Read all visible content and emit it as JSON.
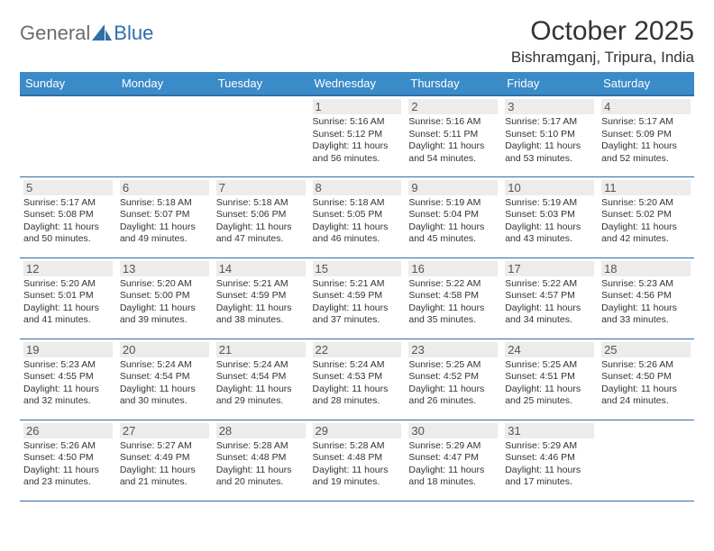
{
  "logo": {
    "general": "General",
    "blue": "Blue"
  },
  "title": "October 2025",
  "location": "Bishramganj, Tripura, India",
  "colors": {
    "header_bg": "#3b8bc8",
    "header_border": "#2f6fa8",
    "daynum_bg": "#ececec",
    "text": "#333333"
  },
  "weekdays": [
    "Sunday",
    "Monday",
    "Tuesday",
    "Wednesday",
    "Thursday",
    "Friday",
    "Saturday"
  ],
  "grid": [
    [
      {
        "empty": true
      },
      {
        "empty": true
      },
      {
        "empty": true
      },
      {
        "day": "1",
        "sunrise": "Sunrise: 5:16 AM",
        "sunset": "Sunset: 5:12 PM",
        "dl1": "Daylight: 11 hours",
        "dl2": "and 56 minutes."
      },
      {
        "day": "2",
        "sunrise": "Sunrise: 5:16 AM",
        "sunset": "Sunset: 5:11 PM",
        "dl1": "Daylight: 11 hours",
        "dl2": "and 54 minutes."
      },
      {
        "day": "3",
        "sunrise": "Sunrise: 5:17 AM",
        "sunset": "Sunset: 5:10 PM",
        "dl1": "Daylight: 11 hours",
        "dl2": "and 53 minutes."
      },
      {
        "day": "4",
        "sunrise": "Sunrise: 5:17 AM",
        "sunset": "Sunset: 5:09 PM",
        "dl1": "Daylight: 11 hours",
        "dl2": "and 52 minutes."
      }
    ],
    [
      {
        "day": "5",
        "sunrise": "Sunrise: 5:17 AM",
        "sunset": "Sunset: 5:08 PM",
        "dl1": "Daylight: 11 hours",
        "dl2": "and 50 minutes."
      },
      {
        "day": "6",
        "sunrise": "Sunrise: 5:18 AM",
        "sunset": "Sunset: 5:07 PM",
        "dl1": "Daylight: 11 hours",
        "dl2": "and 49 minutes."
      },
      {
        "day": "7",
        "sunrise": "Sunrise: 5:18 AM",
        "sunset": "Sunset: 5:06 PM",
        "dl1": "Daylight: 11 hours",
        "dl2": "and 47 minutes."
      },
      {
        "day": "8",
        "sunrise": "Sunrise: 5:18 AM",
        "sunset": "Sunset: 5:05 PM",
        "dl1": "Daylight: 11 hours",
        "dl2": "and 46 minutes."
      },
      {
        "day": "9",
        "sunrise": "Sunrise: 5:19 AM",
        "sunset": "Sunset: 5:04 PM",
        "dl1": "Daylight: 11 hours",
        "dl2": "and 45 minutes."
      },
      {
        "day": "10",
        "sunrise": "Sunrise: 5:19 AM",
        "sunset": "Sunset: 5:03 PM",
        "dl1": "Daylight: 11 hours",
        "dl2": "and 43 minutes."
      },
      {
        "day": "11",
        "sunrise": "Sunrise: 5:20 AM",
        "sunset": "Sunset: 5:02 PM",
        "dl1": "Daylight: 11 hours",
        "dl2": "and 42 minutes."
      }
    ],
    [
      {
        "day": "12",
        "sunrise": "Sunrise: 5:20 AM",
        "sunset": "Sunset: 5:01 PM",
        "dl1": "Daylight: 11 hours",
        "dl2": "and 41 minutes."
      },
      {
        "day": "13",
        "sunrise": "Sunrise: 5:20 AM",
        "sunset": "Sunset: 5:00 PM",
        "dl1": "Daylight: 11 hours",
        "dl2": "and 39 minutes."
      },
      {
        "day": "14",
        "sunrise": "Sunrise: 5:21 AM",
        "sunset": "Sunset: 4:59 PM",
        "dl1": "Daylight: 11 hours",
        "dl2": "and 38 minutes."
      },
      {
        "day": "15",
        "sunrise": "Sunrise: 5:21 AM",
        "sunset": "Sunset: 4:59 PM",
        "dl1": "Daylight: 11 hours",
        "dl2": "and 37 minutes."
      },
      {
        "day": "16",
        "sunrise": "Sunrise: 5:22 AM",
        "sunset": "Sunset: 4:58 PM",
        "dl1": "Daylight: 11 hours",
        "dl2": "and 35 minutes."
      },
      {
        "day": "17",
        "sunrise": "Sunrise: 5:22 AM",
        "sunset": "Sunset: 4:57 PM",
        "dl1": "Daylight: 11 hours",
        "dl2": "and 34 minutes."
      },
      {
        "day": "18",
        "sunrise": "Sunrise: 5:23 AM",
        "sunset": "Sunset: 4:56 PM",
        "dl1": "Daylight: 11 hours",
        "dl2": "and 33 minutes."
      }
    ],
    [
      {
        "day": "19",
        "sunrise": "Sunrise: 5:23 AM",
        "sunset": "Sunset: 4:55 PM",
        "dl1": "Daylight: 11 hours",
        "dl2": "and 32 minutes."
      },
      {
        "day": "20",
        "sunrise": "Sunrise: 5:24 AM",
        "sunset": "Sunset: 4:54 PM",
        "dl1": "Daylight: 11 hours",
        "dl2": "and 30 minutes."
      },
      {
        "day": "21",
        "sunrise": "Sunrise: 5:24 AM",
        "sunset": "Sunset: 4:54 PM",
        "dl1": "Daylight: 11 hours",
        "dl2": "and 29 minutes."
      },
      {
        "day": "22",
        "sunrise": "Sunrise: 5:24 AM",
        "sunset": "Sunset: 4:53 PM",
        "dl1": "Daylight: 11 hours",
        "dl2": "and 28 minutes."
      },
      {
        "day": "23",
        "sunrise": "Sunrise: 5:25 AM",
        "sunset": "Sunset: 4:52 PM",
        "dl1": "Daylight: 11 hours",
        "dl2": "and 26 minutes."
      },
      {
        "day": "24",
        "sunrise": "Sunrise: 5:25 AM",
        "sunset": "Sunset: 4:51 PM",
        "dl1": "Daylight: 11 hours",
        "dl2": "and 25 minutes."
      },
      {
        "day": "25",
        "sunrise": "Sunrise: 5:26 AM",
        "sunset": "Sunset: 4:50 PM",
        "dl1": "Daylight: 11 hours",
        "dl2": "and 24 minutes."
      }
    ],
    [
      {
        "day": "26",
        "sunrise": "Sunrise: 5:26 AM",
        "sunset": "Sunset: 4:50 PM",
        "dl1": "Daylight: 11 hours",
        "dl2": "and 23 minutes."
      },
      {
        "day": "27",
        "sunrise": "Sunrise: 5:27 AM",
        "sunset": "Sunset: 4:49 PM",
        "dl1": "Daylight: 11 hours",
        "dl2": "and 21 minutes."
      },
      {
        "day": "28",
        "sunrise": "Sunrise: 5:28 AM",
        "sunset": "Sunset: 4:48 PM",
        "dl1": "Daylight: 11 hours",
        "dl2": "and 20 minutes."
      },
      {
        "day": "29",
        "sunrise": "Sunrise: 5:28 AM",
        "sunset": "Sunset: 4:48 PM",
        "dl1": "Daylight: 11 hours",
        "dl2": "and 19 minutes."
      },
      {
        "day": "30",
        "sunrise": "Sunrise: 5:29 AM",
        "sunset": "Sunset: 4:47 PM",
        "dl1": "Daylight: 11 hours",
        "dl2": "and 18 minutes."
      },
      {
        "day": "31",
        "sunrise": "Sunrise: 5:29 AM",
        "sunset": "Sunset: 4:46 PM",
        "dl1": "Daylight: 11 hours",
        "dl2": "and 17 minutes."
      },
      {
        "empty": true
      }
    ]
  ]
}
